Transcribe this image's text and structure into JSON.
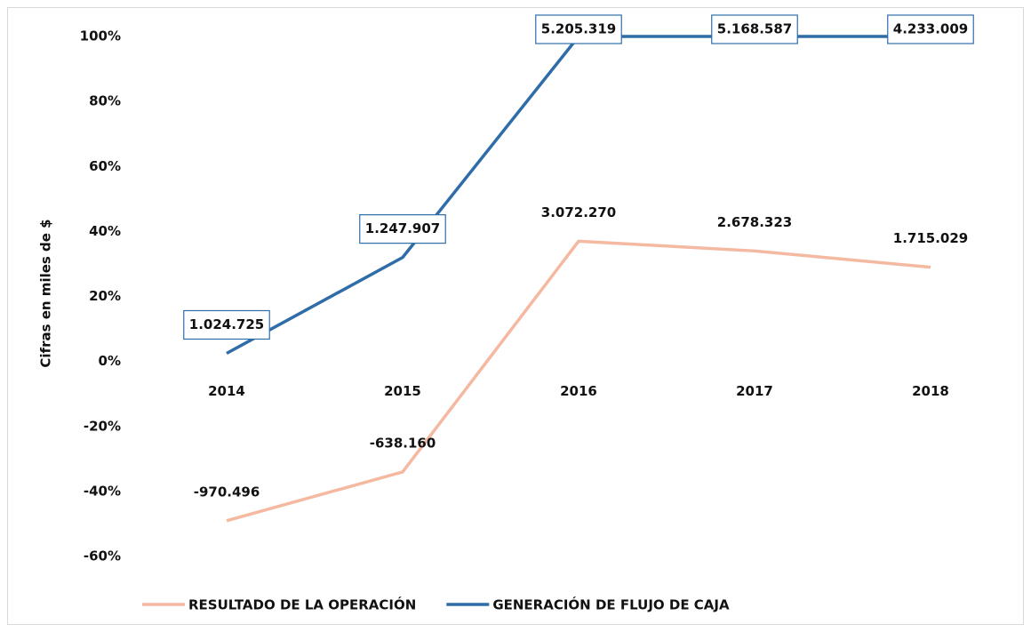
{
  "chart_data": {
    "type": "line",
    "y_axis_label": "Cifras en miles de $",
    "categories": [
      "2014",
      "2015",
      "2016",
      "2017",
      "2018"
    ],
    "series": [
      {
        "name": "RESULTADO DE LA OPERACIÓN",
        "color": "#f4b9a0",
        "values": [
          -49,
          -34,
          37,
          34,
          29
        ],
        "labels": [
          "-970.496",
          "-638.160",
          "3.072.270",
          "2.678.323",
          "1.715.029"
        ],
        "label_boxed": false
      },
      {
        "name": "GENERACIÓN DE FLUJO DE CAJA",
        "color": "#2e6da8",
        "values": [
          2.5,
          32,
          100,
          100,
          100
        ],
        "labels": [
          "1.024.725",
          "1.247.907",
          "5.205.319",
          "5.168.587",
          "4.233.009"
        ],
        "label_boxed": true
      }
    ],
    "ylim": [
      -60,
      100
    ],
    "yticks": [
      {
        "value": -60,
        "label": "-60%"
      },
      {
        "value": -40,
        "label": "-40%"
      },
      {
        "value": -20,
        "label": "-20%"
      },
      {
        "value": 0,
        "label": "0%"
      },
      {
        "value": 20,
        "label": "20%"
      },
      {
        "value": 40,
        "label": "40%"
      },
      {
        "value": 60,
        "label": "60%"
      },
      {
        "value": 80,
        "label": "80%"
      },
      {
        "value": 100,
        "label": "100%"
      }
    ],
    "legend": "bottom"
  }
}
